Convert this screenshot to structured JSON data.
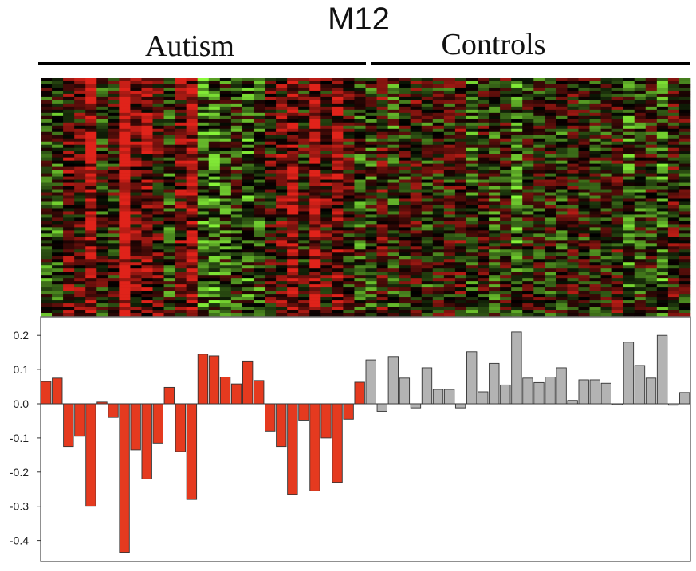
{
  "chart_data": {
    "type": "bar",
    "title": "M12",
    "groups": [
      {
        "name": "Autism",
        "color": "#e53a1f",
        "values": [
          0.065,
          0.075,
          -0.125,
          -0.095,
          -0.3,
          0.005,
          -0.04,
          -0.435,
          -0.135,
          -0.22,
          -0.115,
          0.048,
          -0.14,
          -0.28,
          0.145,
          0.14,
          0.078,
          0.058,
          0.125,
          0.068,
          -0.08,
          -0.125,
          -0.265,
          -0.05,
          -0.255,
          -0.1,
          -0.23,
          -0.045,
          0.063
        ]
      },
      {
        "name": "Controls",
        "color": "#b3b3b3",
        "values": [
          0.128,
          -0.022,
          0.138,
          0.075,
          -0.012,
          0.105,
          0.042,
          0.042,
          -0.012,
          0.152,
          0.035,
          0.118,
          0.055,
          0.21,
          0.075,
          0.062,
          0.078,
          0.105,
          0.01,
          0.07,
          0.07,
          0.06,
          0.0,
          0.18,
          0.112,
          0.075,
          0.2,
          -0.004,
          0.033
        ]
      }
    ],
    "yticks": [
      "0.2",
      "0.1",
      "0.0",
      "-0.1",
      "-0.2",
      "-0.3",
      "-0.4"
    ],
    "ylim": [
      -0.45,
      0.24
    ],
    "xlabel": "",
    "ylabel": "",
    "grid": false,
    "legend": "none",
    "heatmap": {
      "rows": 75,
      "low_color": "#8af93a",
      "mid_color": "#000000",
      "high_color": "#e0231a"
    }
  }
}
